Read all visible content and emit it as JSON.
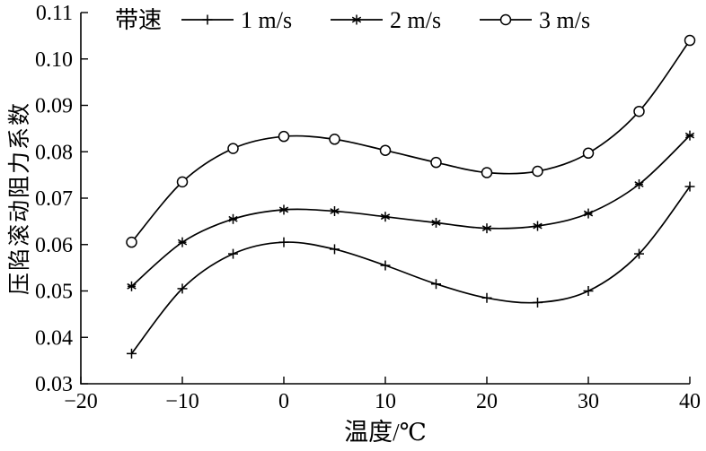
{
  "chart_data": {
    "type": "line",
    "title": "",
    "xlabel": "温度/℃",
    "ylabel": "压陷滚动阻力系数",
    "xlim": [
      -20,
      40
    ],
    "ylim": [
      0.03,
      0.11
    ],
    "xticks": [
      -20,
      -10,
      0,
      10,
      20,
      30,
      40
    ],
    "yticks": [
      0.03,
      0.04,
      0.05,
      0.06,
      0.07,
      0.08,
      0.09,
      0.1,
      0.11
    ],
    "grid": false,
    "legend_position": "top-inside",
    "legend_title": "带速",
    "line_color": "#000000",
    "x": [
      -15,
      -10,
      -5,
      0,
      5,
      10,
      15,
      20,
      25,
      30,
      35,
      40
    ],
    "series": [
      {
        "name": "1 m/s",
        "marker": "plus",
        "values": [
          0.0365,
          0.0505,
          0.058,
          0.0605,
          0.059,
          0.0555,
          0.0515,
          0.0485,
          0.0475,
          0.05,
          0.058,
          0.0725
        ]
      },
      {
        "name": "2 m/s",
        "marker": "asterisk",
        "values": [
          0.051,
          0.0605,
          0.0655,
          0.0675,
          0.0672,
          0.066,
          0.0647,
          0.0635,
          0.064,
          0.0667,
          0.073,
          0.0835
        ]
      },
      {
        "name": "3 m/s",
        "marker": "circle",
        "values": [
          0.0605,
          0.0735,
          0.0807,
          0.0833,
          0.0827,
          0.0803,
          0.0777,
          0.0755,
          0.0758,
          0.0797,
          0.0887,
          0.104
        ]
      }
    ]
  }
}
